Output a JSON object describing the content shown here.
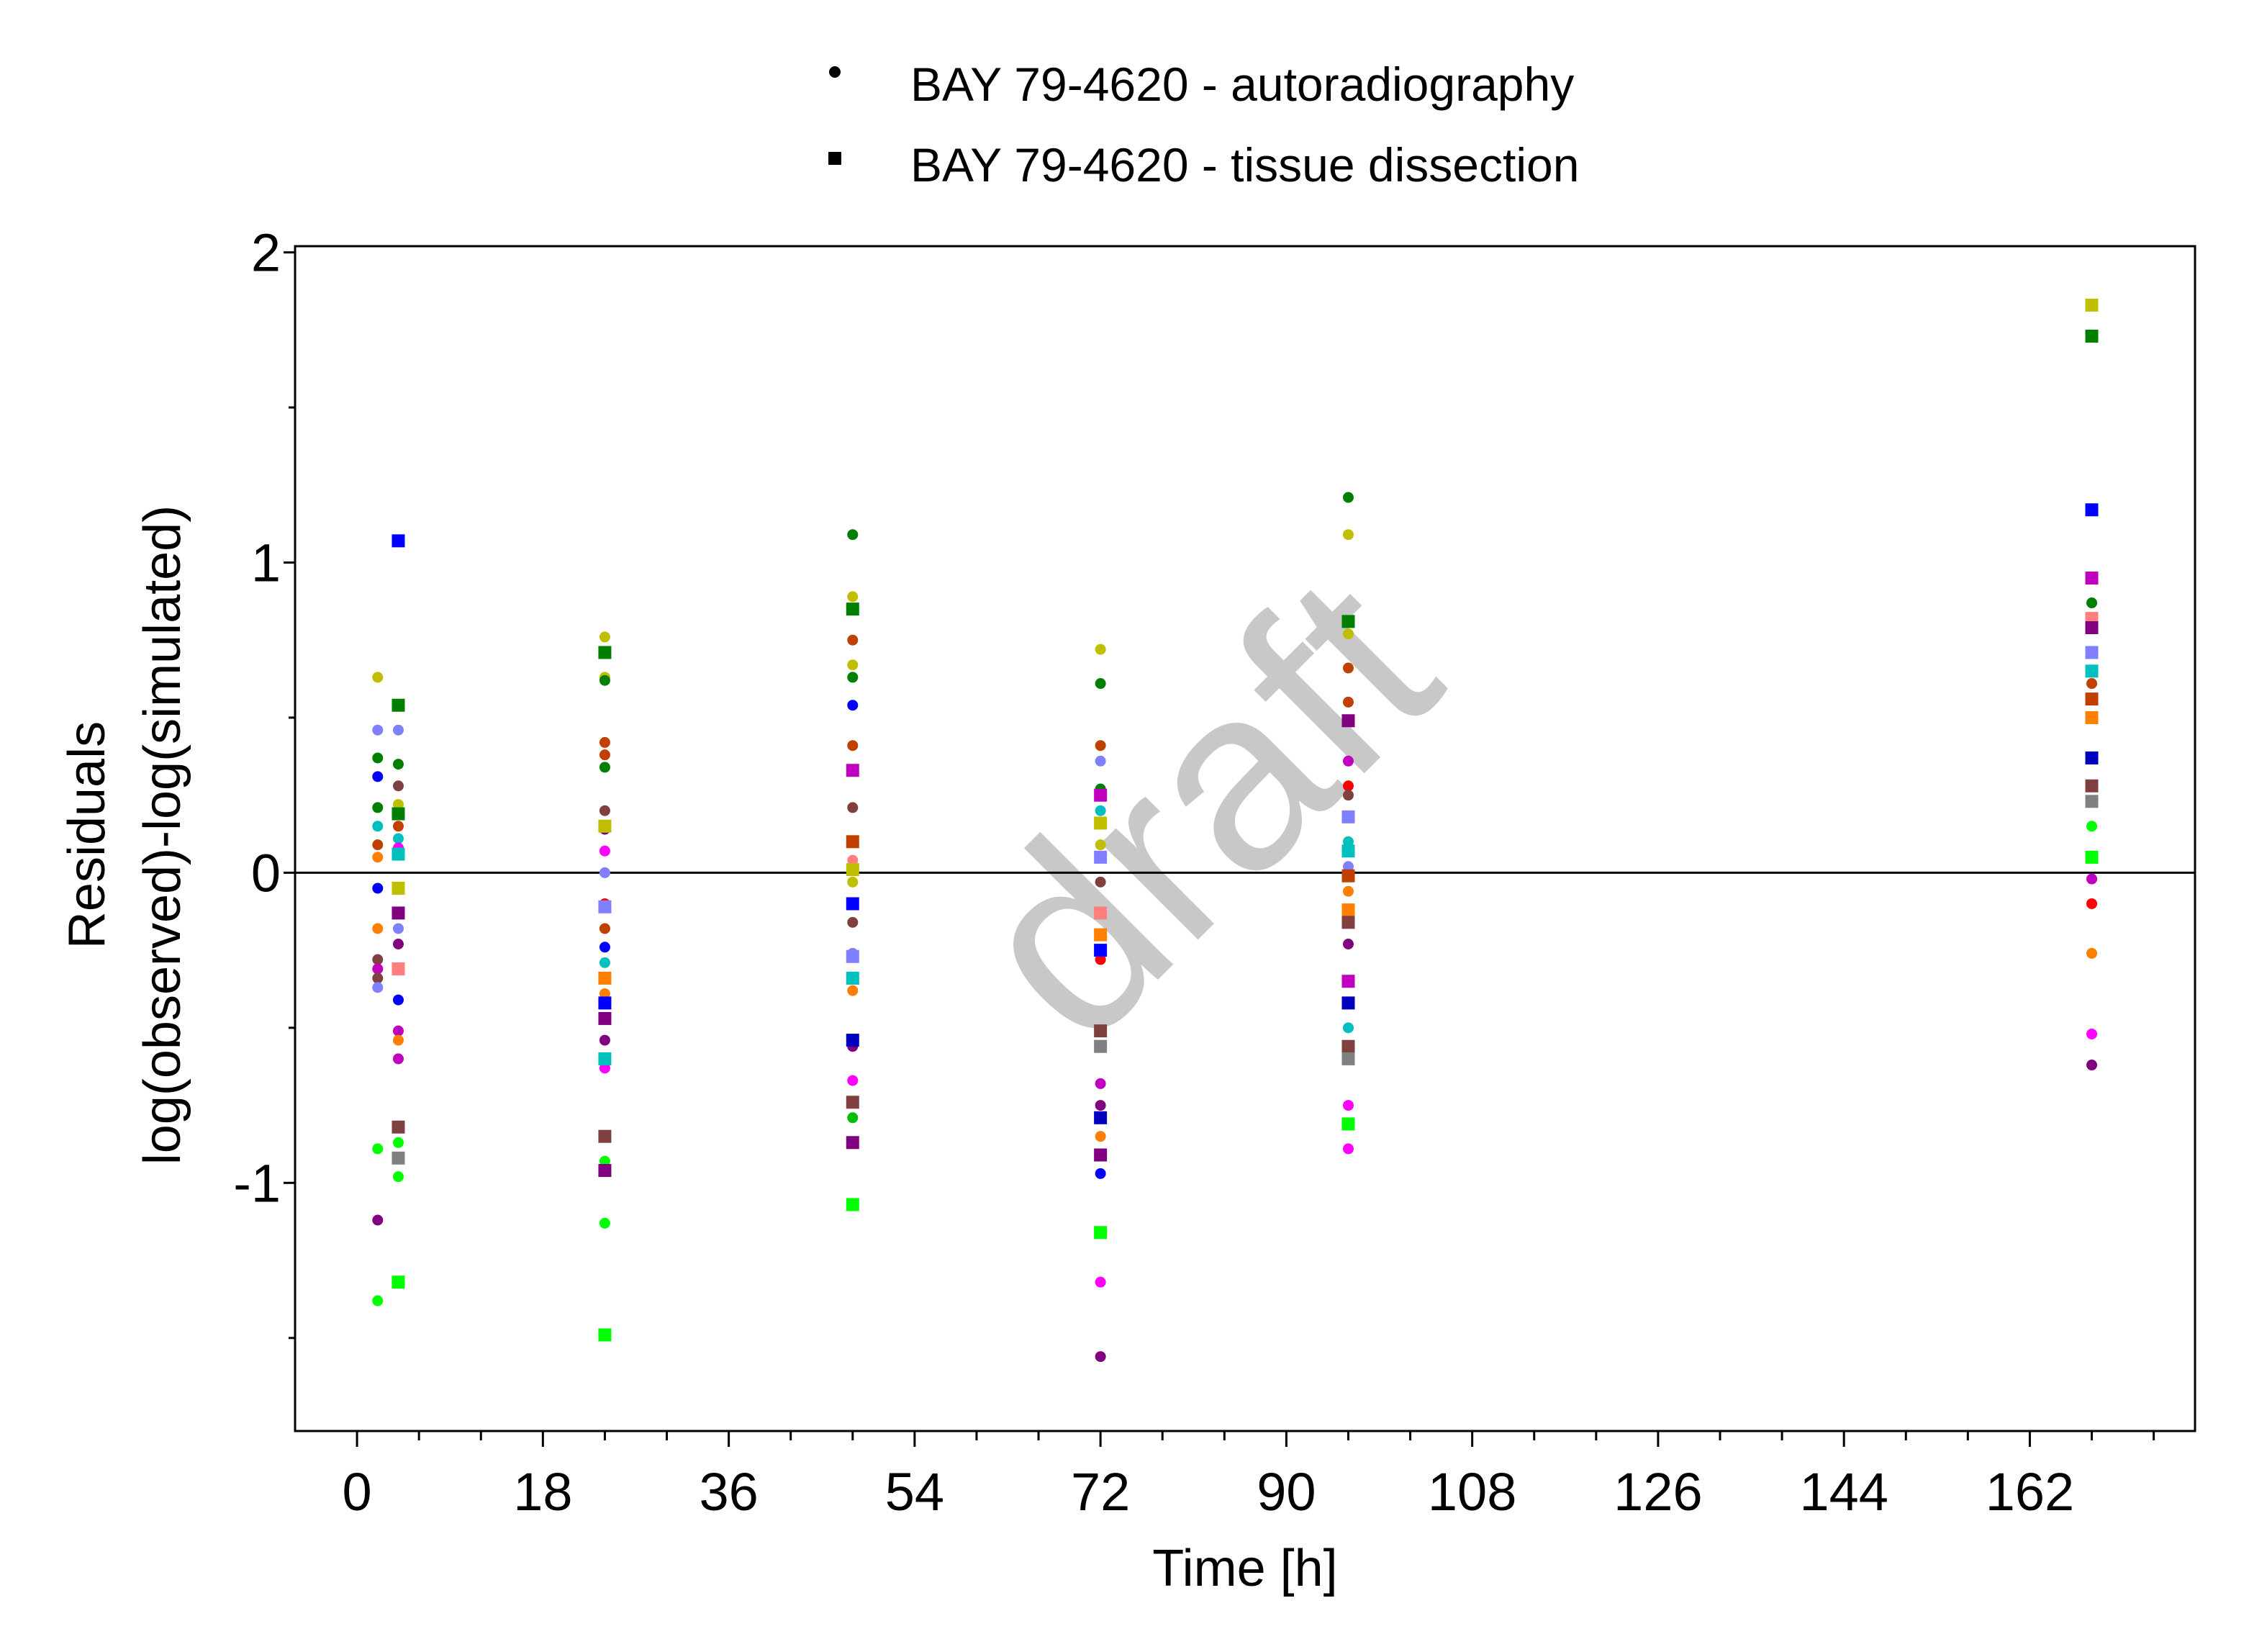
{
  "chart_data": {
    "type": "scatter",
    "xlabel": "Time [h]",
    "ylabel_line1": "Residuals",
    "ylabel_line2": "log(observed)-log(simulated)",
    "watermark": "draft",
    "xlim": [
      -6,
      178
    ],
    "ylim": [
      -1.8,
      2.02
    ],
    "xticks": [
      0,
      18,
      36,
      54,
      72,
      90,
      108,
      126,
      144,
      162
    ],
    "yticks": [
      -1,
      0,
      1,
      2
    ],
    "reference_line_y": 0,
    "legend_placement": "top-center",
    "series": [
      {
        "name": "BAY 79-4620 - autoradiography",
        "marker": "circle",
        "points": [
          {
            "x": 2,
            "y": 0.63,
            "color": "#bfbf00"
          },
          {
            "x": 2,
            "y": 0.46,
            "color": "#7f7fff"
          },
          {
            "x": 2,
            "y": 0.37,
            "color": "#007f00"
          },
          {
            "x": 2,
            "y": 0.31,
            "color": "#0000ff"
          },
          {
            "x": 2,
            "y": 0.21,
            "color": "#007f00"
          },
          {
            "x": 2,
            "y": 0.15,
            "color": "#00bfbf"
          },
          {
            "x": 2,
            "y": 0.09,
            "color": "#c04000"
          },
          {
            "x": 2,
            "y": 0.05,
            "color": "#ff7f00"
          },
          {
            "x": 2,
            "y": -0.05,
            "color": "#0000ff"
          },
          {
            "x": 2,
            "y": -0.18,
            "color": "#ff7f00"
          },
          {
            "x": 2,
            "y": -0.28,
            "color": "#804040"
          },
          {
            "x": 2,
            "y": -0.31,
            "color": "#bf00bf"
          },
          {
            "x": 2,
            "y": -0.34,
            "color": "#804040"
          },
          {
            "x": 2,
            "y": -0.37,
            "color": "#7f7fff"
          },
          {
            "x": 2,
            "y": -0.89,
            "color": "#00ff00"
          },
          {
            "x": 2,
            "y": -1.12,
            "color": "#800080"
          },
          {
            "x": 2,
            "y": -1.38,
            "color": "#00ff00"
          },
          {
            "x": 4,
            "y": 0.46,
            "color": "#7f7fff"
          },
          {
            "x": 4,
            "y": 0.35,
            "color": "#007f00"
          },
          {
            "x": 4,
            "y": 0.28,
            "color": "#804040"
          },
          {
            "x": 4,
            "y": 0.22,
            "color": "#bfbf00"
          },
          {
            "x": 4,
            "y": 0.15,
            "color": "#c04000"
          },
          {
            "x": 4,
            "y": 0.11,
            "color": "#00bfbf"
          },
          {
            "x": 4,
            "y": 0.08,
            "color": "#ff00ff"
          },
          {
            "x": 4,
            "y": -0.18,
            "color": "#7f7fff"
          },
          {
            "x": 4,
            "y": -0.23,
            "color": "#800080"
          },
          {
            "x": 4,
            "y": -0.41,
            "color": "#0000ff"
          },
          {
            "x": 4,
            "y": -0.51,
            "color": "#bf00bf"
          },
          {
            "x": 4,
            "y": -0.54,
            "color": "#ff7f00"
          },
          {
            "x": 4,
            "y": -0.6,
            "color": "#bf00bf"
          },
          {
            "x": 4,
            "y": -0.87,
            "color": "#00ff00"
          },
          {
            "x": 4,
            "y": -0.98,
            "color": "#00ff00"
          },
          {
            "x": 24,
            "y": 0.76,
            "color": "#bfbf00"
          },
          {
            "x": 24,
            "y": 0.63,
            "color": "#bfbf00"
          },
          {
            "x": 24,
            "y": 0.62,
            "color": "#007f00"
          },
          {
            "x": 24,
            "y": 0.42,
            "color": "#c04000"
          },
          {
            "x": 24,
            "y": 0.38,
            "color": "#c04000"
          },
          {
            "x": 24,
            "y": 0.34,
            "color": "#007f00"
          },
          {
            "x": 24,
            "y": 0.2,
            "color": "#804040"
          },
          {
            "x": 24,
            "y": 0.14,
            "color": "#800080"
          },
          {
            "x": 24,
            "y": 0.07,
            "color": "#ff00ff"
          },
          {
            "x": 24,
            "y": 0.0,
            "color": "#7f7fff"
          },
          {
            "x": 24,
            "y": -0.1,
            "color": "#ff0000"
          },
          {
            "x": 24,
            "y": -0.18,
            "color": "#c04000"
          },
          {
            "x": 24,
            "y": -0.24,
            "color": "#0000ff"
          },
          {
            "x": 24,
            "y": -0.29,
            "color": "#00bfbf"
          },
          {
            "x": 24,
            "y": -0.39,
            "color": "#ff7f00"
          },
          {
            "x": 24,
            "y": -0.54,
            "color": "#800080"
          },
          {
            "x": 24,
            "y": -0.63,
            "color": "#ff00ff"
          },
          {
            "x": 24,
            "y": -0.93,
            "color": "#00ff00"
          },
          {
            "x": 24,
            "y": -1.13,
            "color": "#00ff00"
          },
          {
            "x": 48,
            "y": 1.09,
            "color": "#007f00"
          },
          {
            "x": 48,
            "y": 0.89,
            "color": "#bfbf00"
          },
          {
            "x": 48,
            "y": 0.75,
            "color": "#c04000"
          },
          {
            "x": 48,
            "y": 0.67,
            "color": "#bfbf00"
          },
          {
            "x": 48,
            "y": 0.63,
            "color": "#007f00"
          },
          {
            "x": 48,
            "y": 0.54,
            "color": "#0000ff"
          },
          {
            "x": 48,
            "y": 0.41,
            "color": "#c04000"
          },
          {
            "x": 48,
            "y": 0.21,
            "color": "#804040"
          },
          {
            "x": 48,
            "y": 0.04,
            "color": "#ff7f7f"
          },
          {
            "x": 48,
            "y": -0.03,
            "color": "#bfbf00"
          },
          {
            "x": 48,
            "y": -0.16,
            "color": "#804040"
          },
          {
            "x": 48,
            "y": -0.26,
            "color": "#7f7fff"
          },
          {
            "x": 48,
            "y": -0.38,
            "color": "#ff7f00"
          },
          {
            "x": 48,
            "y": -0.56,
            "color": "#800080"
          },
          {
            "x": 48,
            "y": -0.67,
            "color": "#ff00ff"
          },
          {
            "x": 48,
            "y": -0.79,
            "color": "#00bf00"
          },
          {
            "x": 72,
            "y": 0.72,
            "color": "#bfbf00"
          },
          {
            "x": 72,
            "y": 0.61,
            "color": "#007f00"
          },
          {
            "x": 72,
            "y": 0.41,
            "color": "#c04000"
          },
          {
            "x": 72,
            "y": 0.36,
            "color": "#7f7fff"
          },
          {
            "x": 72,
            "y": 0.27,
            "color": "#007f00"
          },
          {
            "x": 72,
            "y": 0.2,
            "color": "#00bfbf"
          },
          {
            "x": 72,
            "y": 0.09,
            "color": "#bfbf00"
          },
          {
            "x": 72,
            "y": -0.03,
            "color": "#804040"
          },
          {
            "x": 72,
            "y": -0.28,
            "color": "#ff0000"
          },
          {
            "x": 72,
            "y": -0.68,
            "color": "#bf00bf"
          },
          {
            "x": 72,
            "y": -0.75,
            "color": "#800080"
          },
          {
            "x": 72,
            "y": -0.85,
            "color": "#ff7f00"
          },
          {
            "x": 72,
            "y": -0.97,
            "color": "#0000ff"
          },
          {
            "x": 72,
            "y": -1.32,
            "color": "#ff00ff"
          },
          {
            "x": 72,
            "y": -1.56,
            "color": "#800080"
          },
          {
            "x": 96,
            "y": 1.21,
            "color": "#007f00"
          },
          {
            "x": 96,
            "y": 1.09,
            "color": "#bfbf00"
          },
          {
            "x": 96,
            "y": 0.77,
            "color": "#bfbf00"
          },
          {
            "x": 96,
            "y": 0.66,
            "color": "#c04000"
          },
          {
            "x": 96,
            "y": 0.55,
            "color": "#c04000"
          },
          {
            "x": 96,
            "y": 0.36,
            "color": "#bf00bf"
          },
          {
            "x": 96,
            "y": 0.28,
            "color": "#ff0000"
          },
          {
            "x": 96,
            "y": 0.25,
            "color": "#804040"
          },
          {
            "x": 96,
            "y": 0.1,
            "color": "#00bfbf"
          },
          {
            "x": 96,
            "y": 0.02,
            "color": "#7f7fff"
          },
          {
            "x": 96,
            "y": -0.06,
            "color": "#ff7f00"
          },
          {
            "x": 96,
            "y": -0.23,
            "color": "#800080"
          },
          {
            "x": 96,
            "y": -0.5,
            "color": "#00bfbf"
          },
          {
            "x": 96,
            "y": -0.75,
            "color": "#ff00ff"
          },
          {
            "x": 96,
            "y": -0.89,
            "color": "#ff00ff"
          },
          {
            "x": 168,
            "y": 0.87,
            "color": "#007f00"
          },
          {
            "x": 168,
            "y": 0.61,
            "color": "#c04000"
          },
          {
            "x": 168,
            "y": 0.15,
            "color": "#00ff00"
          },
          {
            "x": 168,
            "y": -0.02,
            "color": "#bf00bf"
          },
          {
            "x": 168,
            "y": -0.1,
            "color": "#ff0000"
          },
          {
            "x": 168,
            "y": -0.26,
            "color": "#ff7f00"
          },
          {
            "x": 168,
            "y": -0.52,
            "color": "#ff00ff"
          },
          {
            "x": 168,
            "y": -0.62,
            "color": "#800080"
          }
        ]
      },
      {
        "name": "BAY 79-4620 - tissue dissection",
        "marker": "square",
        "points": [
          {
            "x": 4,
            "y": 1.07,
            "color": "#0000ff"
          },
          {
            "x": 4,
            "y": 0.54,
            "color": "#007f00"
          },
          {
            "x": 4,
            "y": 0.19,
            "color": "#007f00"
          },
          {
            "x": 4,
            "y": 0.06,
            "color": "#00bfbf"
          },
          {
            "x": 4,
            "y": -0.05,
            "color": "#bfbf00"
          },
          {
            "x": 4,
            "y": -0.13,
            "color": "#800080"
          },
          {
            "x": 4,
            "y": -0.31,
            "color": "#ff7f7f"
          },
          {
            "x": 4,
            "y": -0.82,
            "color": "#804040"
          },
          {
            "x": 4,
            "y": -0.92,
            "color": "#808080"
          },
          {
            "x": 4,
            "y": -1.32,
            "color": "#00ff00"
          },
          {
            "x": 24,
            "y": 0.71,
            "color": "#007f00"
          },
          {
            "x": 24,
            "y": 0.15,
            "color": "#bfbf00"
          },
          {
            "x": 24,
            "y": -0.11,
            "color": "#7f7fff"
          },
          {
            "x": 24,
            "y": -0.34,
            "color": "#ff7f00"
          },
          {
            "x": 24,
            "y": -0.42,
            "color": "#0000ff"
          },
          {
            "x": 24,
            "y": -0.47,
            "color": "#800080"
          },
          {
            "x": 24,
            "y": -0.6,
            "color": "#00bfbf"
          },
          {
            "x": 24,
            "y": -0.85,
            "color": "#804040"
          },
          {
            "x": 24,
            "y": -0.96,
            "color": "#800080"
          },
          {
            "x": 24,
            "y": -1.49,
            "color": "#00ff00"
          },
          {
            "x": 48,
            "y": 0.85,
            "color": "#007f00"
          },
          {
            "x": 48,
            "y": 0.33,
            "color": "#bf00bf"
          },
          {
            "x": 48,
            "y": 0.1,
            "color": "#c04000"
          },
          {
            "x": 48,
            "y": 0.01,
            "color": "#bfbf00"
          },
          {
            "x": 48,
            "y": -0.1,
            "color": "#0000ff"
          },
          {
            "x": 48,
            "y": -0.27,
            "color": "#7f7fff"
          },
          {
            "x": 48,
            "y": -0.34,
            "color": "#00bfbf"
          },
          {
            "x": 48,
            "y": -0.54,
            "color": "#0000bf"
          },
          {
            "x": 48,
            "y": -0.74,
            "color": "#804040"
          },
          {
            "x": 48,
            "y": -0.87,
            "color": "#800080"
          },
          {
            "x": 48,
            "y": -1.07,
            "color": "#00ff00"
          },
          {
            "x": 72,
            "y": 0.25,
            "color": "#bf00bf"
          },
          {
            "x": 72,
            "y": 0.16,
            "color": "#bfbf00"
          },
          {
            "x": 72,
            "y": 0.05,
            "color": "#7f7fff"
          },
          {
            "x": 72,
            "y": -0.13,
            "color": "#ff7f7f"
          },
          {
            "x": 72,
            "y": -0.2,
            "color": "#ff7f00"
          },
          {
            "x": 72,
            "y": -0.25,
            "color": "#0000ff"
          },
          {
            "x": 72,
            "y": -0.51,
            "color": "#804040"
          },
          {
            "x": 72,
            "y": -0.56,
            "color": "#808080"
          },
          {
            "x": 72,
            "y": -0.79,
            "color": "#0000bf"
          },
          {
            "x": 72,
            "y": -0.91,
            "color": "#800080"
          },
          {
            "x": 72,
            "y": -1.16,
            "color": "#00ff00"
          },
          {
            "x": 96,
            "y": 0.81,
            "color": "#007f00"
          },
          {
            "x": 96,
            "y": 0.49,
            "color": "#800080"
          },
          {
            "x": 96,
            "y": 0.18,
            "color": "#7f7fff"
          },
          {
            "x": 96,
            "y": 0.07,
            "color": "#00bfbf"
          },
          {
            "x": 96,
            "y": -0.01,
            "color": "#c04000"
          },
          {
            "x": 96,
            "y": -0.12,
            "color": "#ff7f00"
          },
          {
            "x": 96,
            "y": -0.16,
            "color": "#804040"
          },
          {
            "x": 96,
            "y": -0.35,
            "color": "#bf00bf"
          },
          {
            "x": 96,
            "y": -0.42,
            "color": "#0000bf"
          },
          {
            "x": 96,
            "y": -0.56,
            "color": "#804040"
          },
          {
            "x": 96,
            "y": -0.6,
            "color": "#808080"
          },
          {
            "x": 96,
            "y": -0.81,
            "color": "#00ff00"
          },
          {
            "x": 168,
            "y": 1.83,
            "color": "#bfbf00"
          },
          {
            "x": 168,
            "y": 1.73,
            "color": "#007f00"
          },
          {
            "x": 168,
            "y": 1.17,
            "color": "#0000ff"
          },
          {
            "x": 168,
            "y": 0.95,
            "color": "#bf00bf"
          },
          {
            "x": 168,
            "y": 0.82,
            "color": "#ff7f7f"
          },
          {
            "x": 168,
            "y": 0.79,
            "color": "#800080"
          },
          {
            "x": 168,
            "y": 0.71,
            "color": "#7f7fff"
          },
          {
            "x": 168,
            "y": 0.65,
            "color": "#00bfbf"
          },
          {
            "x": 168,
            "y": 0.56,
            "color": "#c04000"
          },
          {
            "x": 168,
            "y": 0.5,
            "color": "#ff7f00"
          },
          {
            "x": 168,
            "y": 0.37,
            "color": "#0000bf"
          },
          {
            "x": 168,
            "y": 0.28,
            "color": "#804040"
          },
          {
            "x": 168,
            "y": 0.23,
            "color": "#808080"
          },
          {
            "x": 168,
            "y": 0.05,
            "color": "#00ff00"
          }
        ]
      }
    ]
  }
}
